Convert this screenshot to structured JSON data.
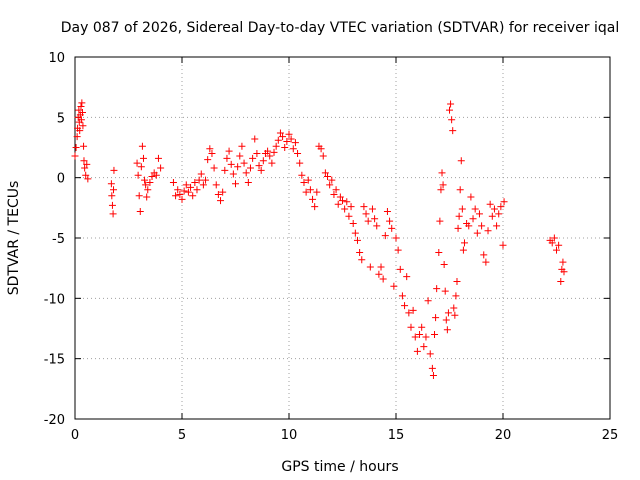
{
  "chart_data": {
    "type": "scatter",
    "title": "Day 087 of 2026, Sidereal Day-to-day VTEC variation (SDTVAR) for receiver iqal",
    "xlabel": "GPS time / hours",
    "ylabel": "SDTVAR / TECUs",
    "xlim": [
      0,
      25
    ],
    "ylim": [
      -20,
      10
    ],
    "xticks": [
      "0",
      "5",
      "10",
      "15",
      "20",
      "25"
    ],
    "yticks": [
      "-20",
      "-15",
      "-10",
      "-5",
      "0",
      "5",
      "10"
    ],
    "grid": true,
    "marker": "+",
    "color": "#ff0000",
    "series": [
      {
        "name": "SDTVAR",
        "points": [
          [
            0.0,
            1.8
          ],
          [
            0.05,
            2.5
          ],
          [
            0.1,
            3.4
          ],
          [
            0.12,
            4.1
          ],
          [
            0.15,
            5.0
          ],
          [
            0.18,
            5.6
          ],
          [
            0.2,
            4.6
          ],
          [
            0.22,
            3.9
          ],
          [
            0.25,
            5.2
          ],
          [
            0.28,
            5.9
          ],
          [
            0.3,
            4.8
          ],
          [
            0.32,
            6.2
          ],
          [
            0.35,
            5.4
          ],
          [
            0.37,
            4.3
          ],
          [
            0.4,
            2.6
          ],
          [
            0.42,
            1.4
          ],
          [
            0.45,
            0.8
          ],
          [
            0.5,
            0.2
          ],
          [
            0.55,
            1.1
          ],
          [
            0.6,
            -0.1
          ],
          [
            1.7,
            -0.5
          ],
          [
            1.72,
            -1.5
          ],
          [
            1.75,
            -2.3
          ],
          [
            1.78,
            -3.0
          ],
          [
            1.8,
            -1.0
          ],
          [
            1.82,
            0.6
          ],
          [
            2.9,
            1.2
          ],
          [
            2.95,
            0.2
          ],
          [
            3.0,
            -1.5
          ],
          [
            3.05,
            -2.8
          ],
          [
            3.1,
            0.9
          ],
          [
            3.15,
            2.6
          ],
          [
            3.2,
            1.6
          ],
          [
            3.25,
            -0.2
          ],
          [
            3.3,
            -0.6
          ],
          [
            3.35,
            -1.6
          ],
          [
            3.4,
            -1.0
          ],
          [
            3.5,
            -0.4
          ],
          [
            3.6,
            0.1
          ],
          [
            3.7,
            0.4
          ],
          [
            3.8,
            0.2
          ],
          [
            3.9,
            1.6
          ],
          [
            4.0,
            0.8
          ],
          [
            4.6,
            -0.4
          ],
          [
            4.7,
            -1.5
          ],
          [
            4.8,
            -1.0
          ],
          [
            4.9,
            -1.4
          ],
          [
            5.0,
            -1.8
          ],
          [
            5.1,
            -1.1
          ],
          [
            5.2,
            -0.6
          ],
          [
            5.3,
            -1.2
          ],
          [
            5.4,
            -0.8
          ],
          [
            5.5,
            -1.5
          ],
          [
            5.6,
            -0.4
          ],
          [
            5.7,
            -1.0
          ],
          [
            5.8,
            -0.2
          ],
          [
            5.9,
            0.3
          ],
          [
            6.0,
            -0.6
          ],
          [
            6.1,
            -0.2
          ],
          [
            6.2,
            1.5
          ],
          [
            6.3,
            2.4
          ],
          [
            6.4,
            2.0
          ],
          [
            6.5,
            0.8
          ],
          [
            6.6,
            -0.6
          ],
          [
            6.7,
            -1.4
          ],
          [
            6.8,
            -1.9
          ],
          [
            6.9,
            -1.2
          ],
          [
            7.0,
            0.6
          ],
          [
            7.1,
            1.6
          ],
          [
            7.2,
            2.2
          ],
          [
            7.3,
            1.1
          ],
          [
            7.4,
            0.3
          ],
          [
            7.5,
            -0.5
          ],
          [
            7.6,
            0.9
          ],
          [
            7.7,
            1.8
          ],
          [
            7.8,
            2.6
          ],
          [
            7.9,
            1.2
          ],
          [
            8.0,
            0.4
          ],
          [
            8.1,
            -0.4
          ],
          [
            8.2,
            0.8
          ],
          [
            8.3,
            1.6
          ],
          [
            8.4,
            3.2
          ],
          [
            8.5,
            2.0
          ],
          [
            8.6,
            1.0
          ],
          [
            8.7,
            0.6
          ],
          [
            8.8,
            1.4
          ],
          [
            8.9,
            2.0
          ],
          [
            9.0,
            2.2
          ],
          [
            9.1,
            1.8
          ],
          [
            9.2,
            1.2
          ],
          [
            9.3,
            2.1
          ],
          [
            9.4,
            2.6
          ],
          [
            9.5,
            3.1
          ],
          [
            9.6,
            3.7
          ],
          [
            9.7,
            3.4
          ],
          [
            9.8,
            2.5
          ],
          [
            9.9,
            3.0
          ],
          [
            10.0,
            3.6
          ],
          [
            10.1,
            3.2
          ],
          [
            10.2,
            2.4
          ],
          [
            10.3,
            2.9
          ],
          [
            10.4,
            2.0
          ],
          [
            10.5,
            1.2
          ],
          [
            10.6,
            0.2
          ],
          [
            10.7,
            -0.4
          ],
          [
            10.8,
            -1.2
          ],
          [
            10.9,
            -0.2
          ],
          [
            11.0,
            -1.0
          ],
          [
            11.1,
            -1.8
          ],
          [
            11.2,
            -2.4
          ],
          [
            11.3,
            -1.2
          ],
          [
            11.4,
            2.6
          ],
          [
            11.5,
            2.4
          ],
          [
            11.6,
            1.8
          ],
          [
            11.7,
            0.4
          ],
          [
            11.8,
            0.1
          ],
          [
            11.9,
            -0.6
          ],
          [
            12.0,
            -0.2
          ],
          [
            12.1,
            -1.4
          ],
          [
            12.2,
            -1.0
          ],
          [
            12.3,
            -2.2
          ],
          [
            12.4,
            -1.6
          ],
          [
            12.5,
            -1.9
          ],
          [
            12.6,
            -2.6
          ],
          [
            12.7,
            -2.0
          ],
          [
            12.8,
            -3.2
          ],
          [
            12.9,
            -2.4
          ],
          [
            13.0,
            -3.8
          ],
          [
            13.1,
            -4.6
          ],
          [
            13.2,
            -5.2
          ],
          [
            13.3,
            -6.2
          ],
          [
            13.4,
            -6.8
          ],
          [
            13.5,
            -2.4
          ],
          [
            13.6,
            -3.0
          ],
          [
            13.7,
            -3.6
          ],
          [
            13.8,
            -7.4
          ],
          [
            13.9,
            -2.6
          ],
          [
            14.0,
            -3.4
          ],
          [
            14.1,
            -4.0
          ],
          [
            14.2,
            -8.0
          ],
          [
            14.3,
            -7.4
          ],
          [
            14.4,
            -8.4
          ],
          [
            14.5,
            -4.8
          ],
          [
            14.6,
            -2.8
          ],
          [
            14.7,
            -3.6
          ],
          [
            14.8,
            -4.2
          ],
          [
            14.9,
            -9.0
          ],
          [
            15.0,
            -5.0
          ],
          [
            15.1,
            -6.0
          ],
          [
            15.2,
            -7.6
          ],
          [
            15.3,
            -9.8
          ],
          [
            15.4,
            -10.6
          ],
          [
            15.5,
            -8.2
          ],
          [
            15.6,
            -11.2
          ],
          [
            15.7,
            -12.4
          ],
          [
            15.8,
            -11.0
          ],
          [
            15.9,
            -13.2
          ],
          [
            16.0,
            -14.4
          ],
          [
            16.1,
            -13.0
          ],
          [
            16.2,
            -12.4
          ],
          [
            16.3,
            -14.0
          ],
          [
            16.4,
            -13.2
          ],
          [
            16.5,
            -10.2
          ],
          [
            16.6,
            -14.6
          ],
          [
            16.7,
            -15.8
          ],
          [
            16.75,
            -16.4
          ],
          [
            16.8,
            -13.0
          ],
          [
            16.85,
            -11.6
          ],
          [
            16.9,
            -9.2
          ],
          [
            17.0,
            -6.2
          ],
          [
            17.05,
            -3.6
          ],
          [
            17.1,
            -1.0
          ],
          [
            17.15,
            0.4
          ],
          [
            17.2,
            -0.6
          ],
          [
            17.25,
            -7.2
          ],
          [
            17.3,
            -9.4
          ],
          [
            17.35,
            -11.8
          ],
          [
            17.4,
            -12.6
          ],
          [
            17.45,
            -11.2
          ],
          [
            17.5,
            5.6
          ],
          [
            17.55,
            6.1
          ],
          [
            17.6,
            4.8
          ],
          [
            17.65,
            3.9
          ],
          [
            17.7,
            -10.8
          ],
          [
            17.75,
            -11.4
          ],
          [
            17.8,
            -9.8
          ],
          [
            17.85,
            -8.6
          ],
          [
            17.9,
            -4.2
          ],
          [
            17.95,
            -3.2
          ],
          [
            18.0,
            -1.0
          ],
          [
            18.05,
            1.4
          ],
          [
            18.1,
            -2.6
          ],
          [
            18.15,
            -6.0
          ],
          [
            18.2,
            -5.4
          ],
          [
            18.3,
            -3.8
          ],
          [
            18.4,
            -4.0
          ],
          [
            18.5,
            -1.6
          ],
          [
            18.6,
            -3.4
          ],
          [
            18.7,
            -2.6
          ],
          [
            18.8,
            -4.6
          ],
          [
            18.9,
            -3.0
          ],
          [
            19.0,
            -4.0
          ],
          [
            19.1,
            -6.4
          ],
          [
            19.2,
            -7.0
          ],
          [
            19.3,
            -4.4
          ],
          [
            19.4,
            -2.2
          ],
          [
            19.5,
            -3.2
          ],
          [
            19.6,
            -2.6
          ],
          [
            19.7,
            -4.0
          ],
          [
            19.8,
            -3.0
          ],
          [
            19.9,
            -2.4
          ],
          [
            20.0,
            -5.6
          ],
          [
            20.05,
            -2.0
          ],
          [
            22.2,
            -5.2
          ],
          [
            22.3,
            -5.4
          ],
          [
            22.4,
            -5.0
          ],
          [
            22.5,
            -6.0
          ],
          [
            22.6,
            -5.6
          ],
          [
            22.7,
            -8.6
          ],
          [
            22.75,
            -7.6
          ],
          [
            22.8,
            -7.0
          ],
          [
            22.85,
            -7.8
          ]
        ]
      }
    ]
  }
}
